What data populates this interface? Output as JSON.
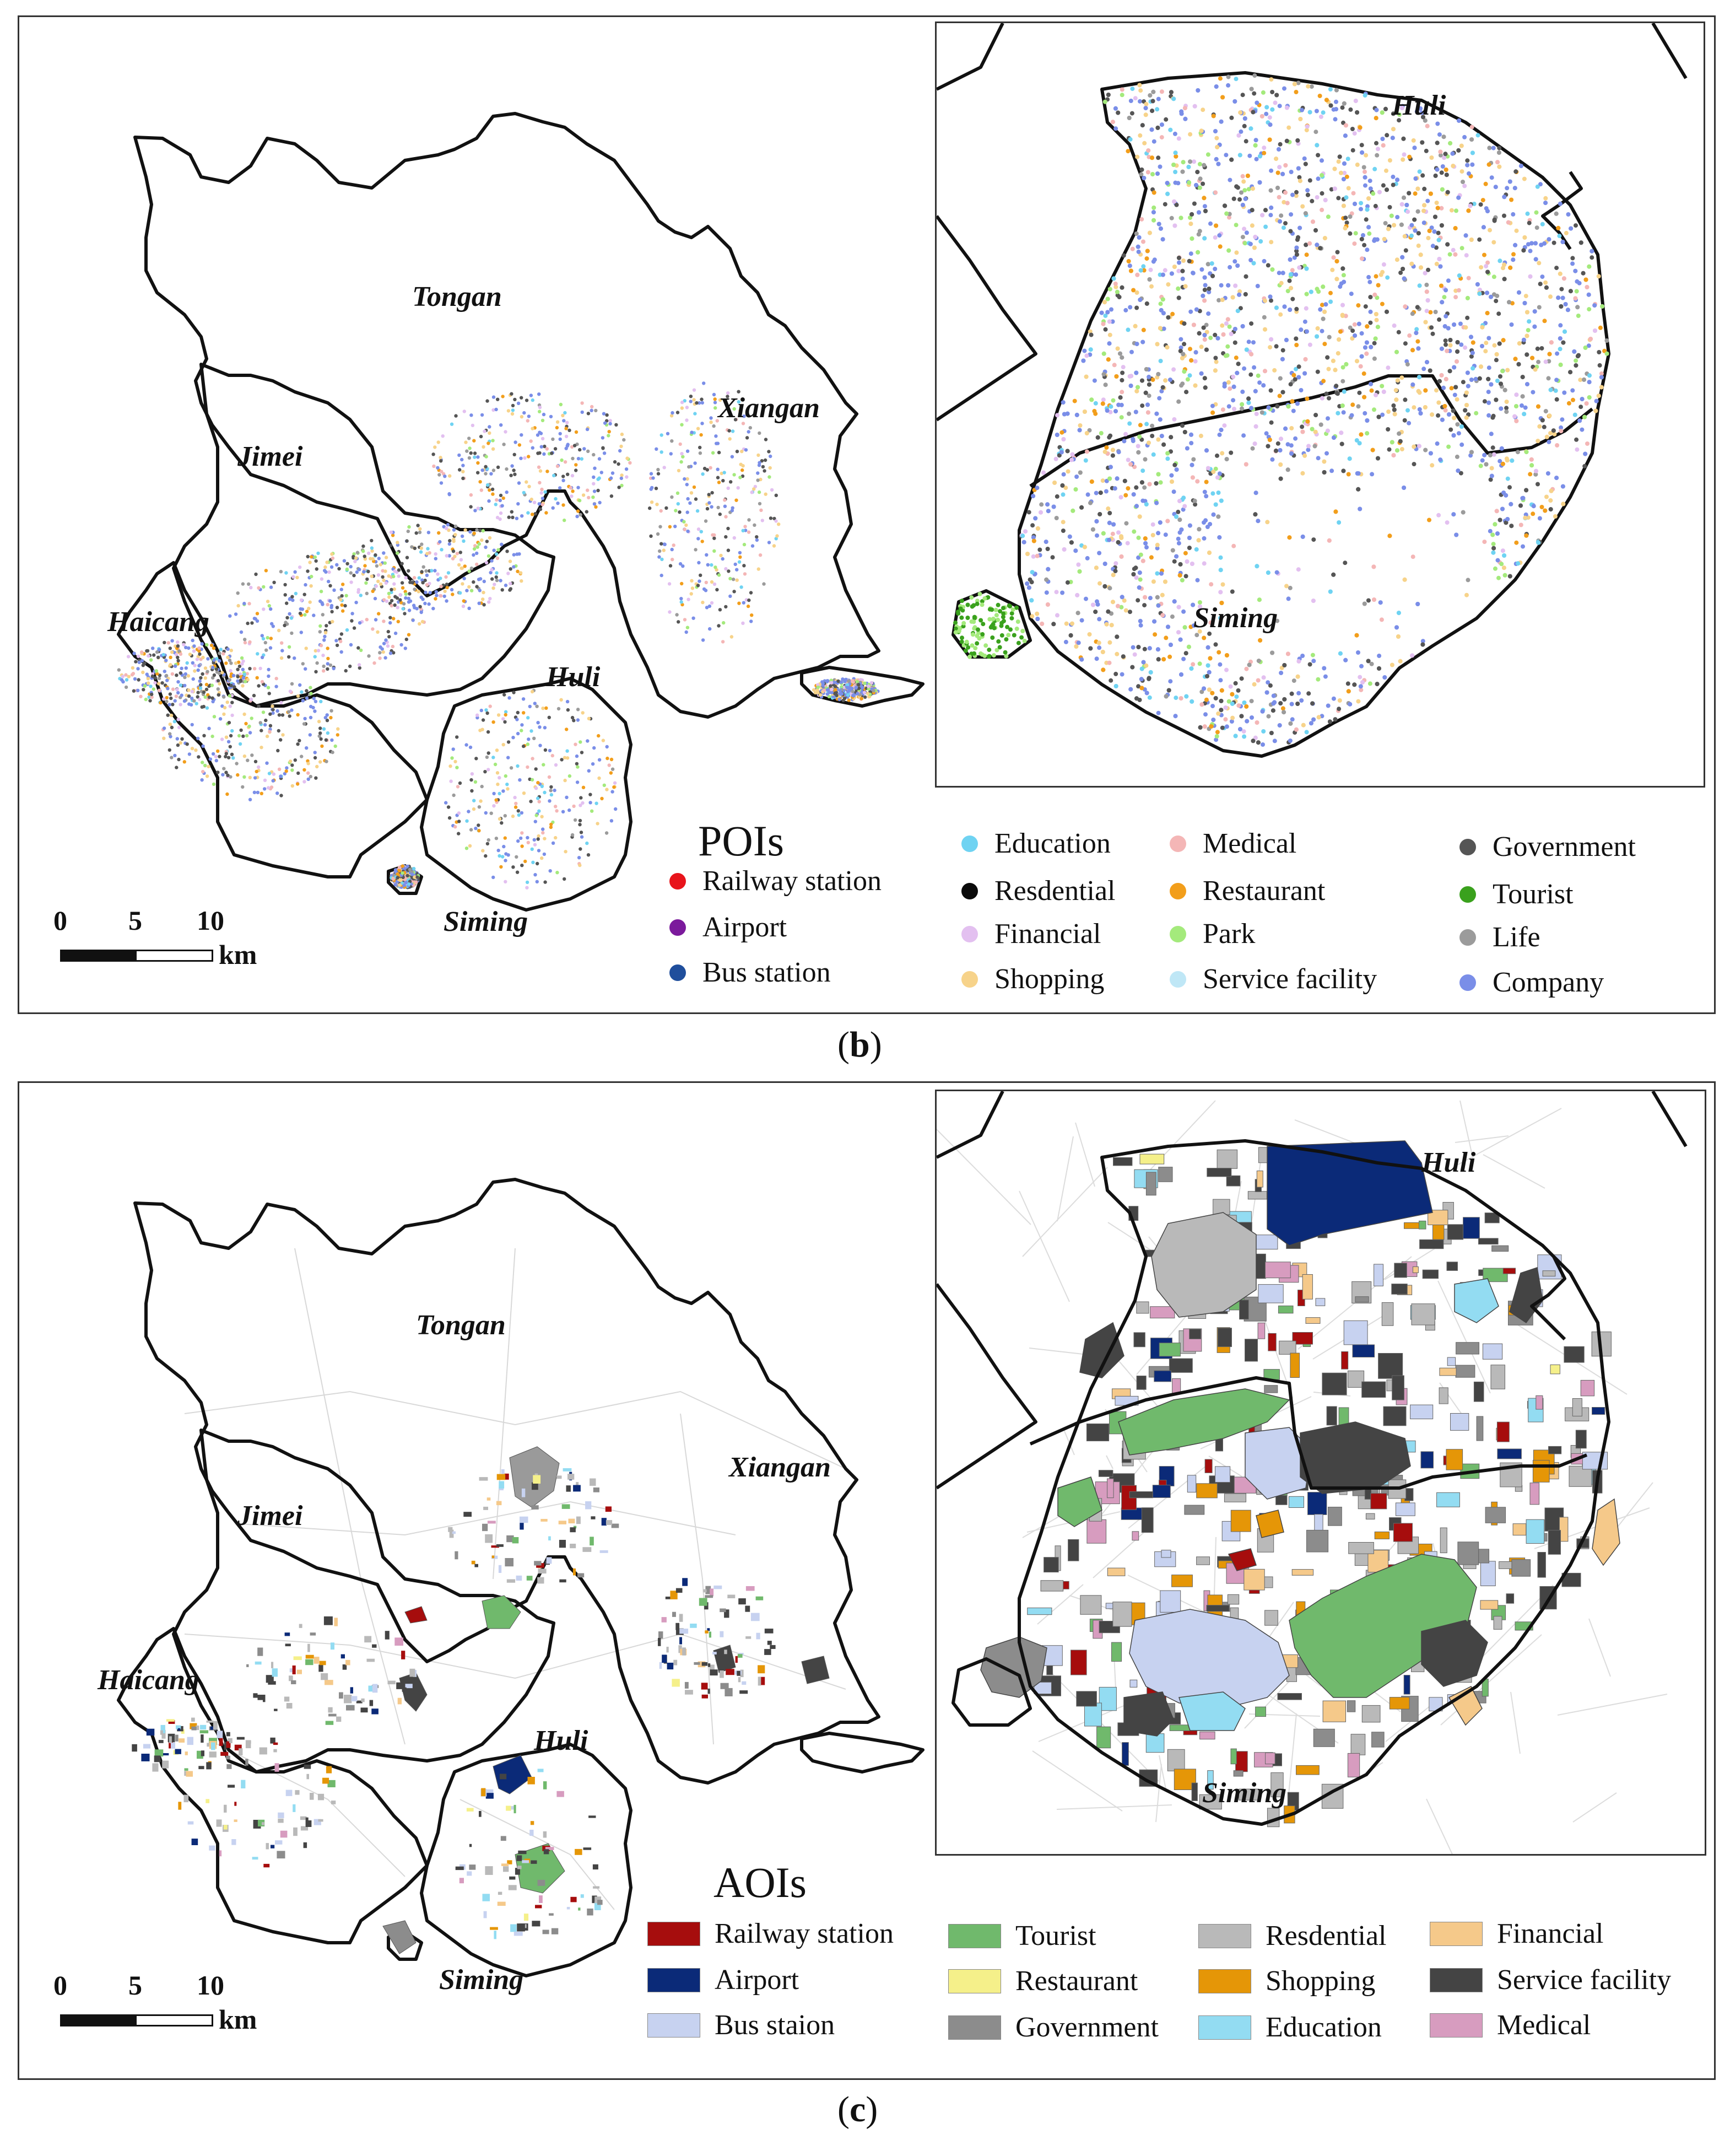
{
  "panel_b": {
    "caption_open": "(",
    "caption_letter": "b",
    "caption_close": ")",
    "legend_title": "POIs",
    "districts": [
      "Tongan",
      "Xiangan",
      "Jimei",
      "Haicang",
      "Huli",
      "Siming"
    ],
    "inset_districts": [
      "Huli",
      "Siming"
    ],
    "scale": {
      "labels": [
        "0",
        "5",
        "10"
      ],
      "unit": "km"
    },
    "legend": [
      {
        "label": "Railway station",
        "color": "#e8141b"
      },
      {
        "label": "Airport",
        "color": "#7b1a9c"
      },
      {
        "label": "Bus station",
        "color": "#1f4e9c"
      },
      {
        "label": "Education",
        "color": "#6fd3f2"
      },
      {
        "label": "Resdential",
        "color": "#0a0a0a"
      },
      {
        "label": "Financial",
        "color": "#e3c0f0"
      },
      {
        "label": "Shopping",
        "color": "#f7d38a"
      },
      {
        "label": "Medical",
        "color": "#f4b6b6"
      },
      {
        "label": "Restaurant",
        "color": "#f29e1b"
      },
      {
        "label": "Park",
        "color": "#a4ea7c"
      },
      {
        "label": "Service facility",
        "color": "#bfe7f6"
      },
      {
        "label": "Government",
        "color": "#555555"
      },
      {
        "label": "Tourist",
        "color": "#3aa11d"
      },
      {
        "label": "Life",
        "color": "#9b9b9b"
      },
      {
        "label": "Company",
        "color": "#7a8ee8"
      }
    ]
  },
  "panel_c": {
    "caption_open": "(",
    "caption_letter": "c",
    "caption_close": ")",
    "legend_title": "AOIs",
    "districts": [
      "Tongan",
      "Xiangan",
      "Jimei",
      "Haicang",
      "Huli",
      "Siming"
    ],
    "inset_districts": [
      "Huli",
      "Siming"
    ],
    "scale": {
      "labels": [
        "0",
        "5",
        "10"
      ],
      "unit": "km"
    },
    "legend": [
      {
        "label": "Railway station",
        "color": "#a60d0d"
      },
      {
        "label": "Airport",
        "color": "#0b2a78"
      },
      {
        "label": "Bus staion",
        "color": "#c7d2f0"
      },
      {
        "label": "Tourist",
        "color": "#70b96c"
      },
      {
        "label": "Restaurant",
        "color": "#f5f08a"
      },
      {
        "label": "Government",
        "color": "#8c8c8c"
      },
      {
        "label": "Resdential",
        "color": "#b9b9b9"
      },
      {
        "label": "Shopping",
        "color": "#e59607"
      },
      {
        "label": "Education",
        "color": "#93dcf2"
      },
      {
        "label": "Financial",
        "color": "#f5c98a"
      },
      {
        "label": "Service facility",
        "color": "#444444"
      },
      {
        "label": "Medical",
        "color": "#d79cbf"
      }
    ]
  }
}
